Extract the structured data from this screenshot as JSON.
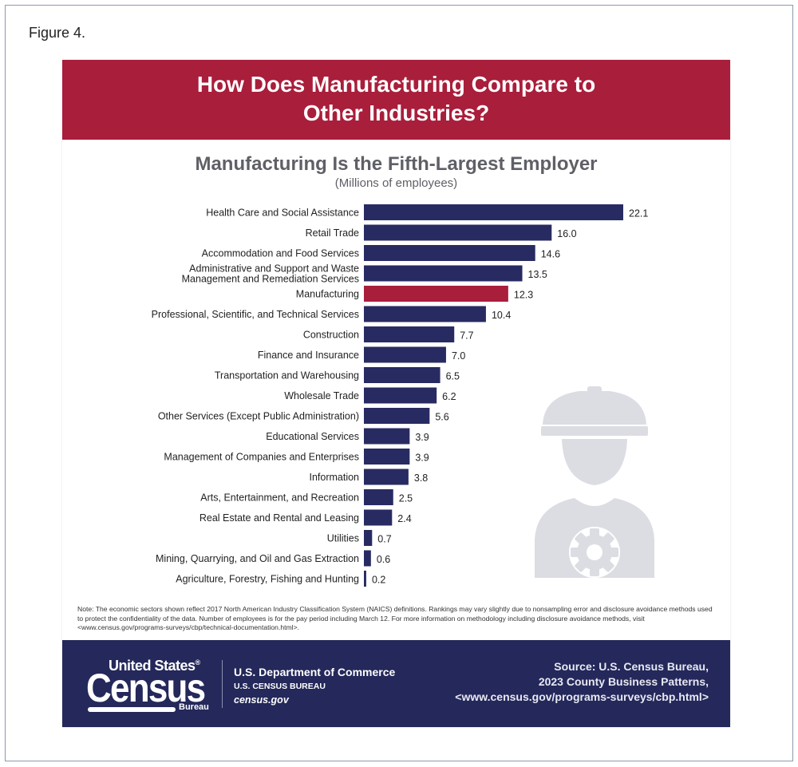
{
  "figure_label": "Figure 4.",
  "banner_title": "How Does Manufacturing Compare to\nOther Industries?",
  "chart_data": {
    "type": "bar",
    "orientation": "horizontal",
    "title": "Manufacturing Is the Fifth-Largest Employer",
    "subtitle": "(Millions of employees)",
    "categories": [
      "Health Care and Social Assistance",
      "Retail Trade",
      "Accommodation and Food Services",
      "Administrative and Support and Waste\nManagement and Remediation Services",
      "Manufacturing",
      "Professional, Scientific, and Technical Services",
      "Construction",
      "Finance and Insurance",
      "Transportation and Warehousing",
      "Wholesale Trade",
      "Other Services (Except Public Administration)",
      "Educational Services",
      "Management of Companies and Enterprises",
      "Information",
      "Arts, Entertainment, and Recreation",
      "Real Estate and Rental and Leasing",
      "Utilities",
      "Mining, Quarrying, and Oil and Gas Extraction",
      "Agriculture, Forestry, Fishing and Hunting"
    ],
    "values": [
      22.1,
      16.0,
      14.6,
      13.5,
      12.3,
      10.4,
      7.7,
      7.0,
      6.5,
      6.2,
      5.6,
      3.9,
      3.9,
      3.8,
      2.5,
      2.4,
      0.7,
      0.6,
      0.2
    ],
    "value_labels": [
      "22.1",
      "16.0",
      "14.6",
      "13.5",
      "12.3",
      "10.4",
      "7.7",
      "7.0",
      "6.5",
      "6.2",
      "5.6",
      "3.9",
      "3.9",
      "3.8",
      "2.5",
      "2.4",
      "0.7",
      "0.6",
      "0.2"
    ],
    "highlight": "Manufacturing",
    "xlim": [
      0,
      22.1
    ],
    "colors": {
      "default": "#282b62",
      "highlight": "#a91e3b"
    },
    "grid": false,
    "legend": "none"
  },
  "note": "Note: The economic sectors shown reflect 2017 North American Industry Classification System (NAICS) definitions. Rankings may vary slightly due to nonsampling error and disclosure avoidance methods used to protect the confidentiality of the data. Number of employees is for the pay period including March 12. For more information on methodology including disclosure avoidance methods, visit <www.census.gov/programs-surveys/cbp/technical-documentation.html>.",
  "footer": {
    "logo_united_states": "United States",
    "logo_registered": "®",
    "logo_census": "Census",
    "logo_bureau": "Bureau",
    "dept": "U.S. Department of Commerce",
    "bureau": "U.S. CENSUS BUREAU",
    "site": "census.gov",
    "source_lines": [
      "Source: U.S. Census Bureau,",
      "2023 County Business Patterns,",
      "<www.census.gov/programs-surveys/cbp.html>"
    ]
  },
  "colors": {
    "banner": "#a91e3b",
    "footer": "#24285a",
    "icon": "#dcdde3"
  },
  "icons": [
    "construction-worker-icon",
    "gear-icon"
  ]
}
